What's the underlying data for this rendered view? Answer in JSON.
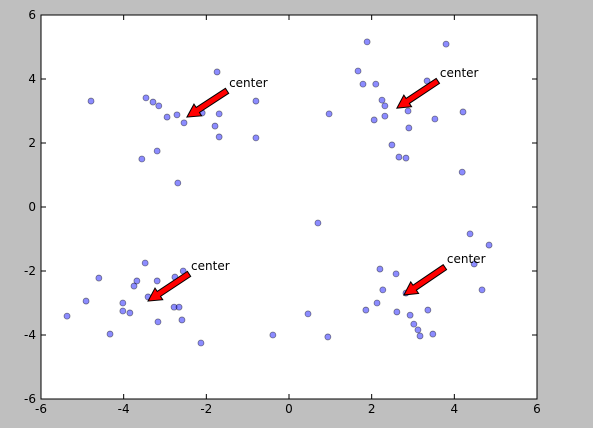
{
  "chart_data": {
    "type": "scatter",
    "x": [
      -4.79,
      -3.46,
      -3.29,
      -3.15,
      -2.95,
      -2.71,
      -2.54,
      -2.1,
      -1.74,
      -1.69,
      -1.79,
      -1.69,
      -0.8,
      -0.8,
      -3.56,
      -3.19,
      -2.69,
      1.89,
      3.8,
      1.67,
      1.79,
      2.1,
      2.25,
      2.32,
      2.32,
      2.06,
      2.88,
      2.9,
      2.49,
      2.66,
      2.83,
      3.34,
      4.21,
      3.53,
      4.19,
      0.7,
      0.97,
      -3.48,
      -4.6,
      -3.68,
      -3.75,
      -3.85,
      -4.02,
      -4.02,
      -4.91,
      -5.37,
      -4.33,
      -3.41,
      -3.19,
      -3.17,
      -2.76,
      -2.56,
      -2.78,
      -2.66,
      -2.59,
      -2.13,
      -0.39,
      0.46,
      0.94,
      2.2,
      2.59,
      2.27,
      2.13,
      1.86,
      2.61,
      2.83,
      2.93,
      3.02,
      3.12,
      3.17,
      3.36,
      3.48,
      4.38,
      4.48,
      4.84,
      4.67
    ],
    "values": [
      3.31,
      3.41,
      3.28,
      3.16,
      2.81,
      2.88,
      2.63,
      2.94,
      4.22,
      2.91,
      2.53,
      2.19,
      3.31,
      2.16,
      1.5,
      1.75,
      0.75,
      5.16,
      5.09,
      4.25,
      3.84,
      3.84,
      3.34,
      3.16,
      2.84,
      2.72,
      3.0,
      2.47,
      1.94,
      1.56,
      1.53,
      3.94,
      2.97,
      2.75,
      1.09,
      -0.5,
      2.91,
      -1.75,
      -2.22,
      -2.31,
      -2.47,
      -3.31,
      -3.0,
      -3.25,
      -2.94,
      -3.41,
      -3.97,
      -2.81,
      -2.31,
      -3.59,
      -2.19,
      -2.0,
      -3.13,
      -3.13,
      -3.53,
      -4.25,
      -4.0,
      -3.34,
      -4.06,
      -1.94,
      -2.09,
      -2.59,
      -3.0,
      -3.22,
      -3.28,
      -2.69,
      -3.38,
      -3.66,
      -3.84,
      -4.03,
      -3.22,
      -3.97,
      -0.84,
      -1.78,
      -1.19,
      -2.59
    ],
    "color": "#0000ff",
    "xlim": [
      -6,
      6
    ],
    "ylim": [
      -6,
      6
    ],
    "xticks": [
      -6,
      -4,
      -2,
      0,
      2,
      4,
      6
    ],
    "yticks": [
      -6,
      -4,
      -2,
      0,
      2,
      4,
      6
    ],
    "annotations": [
      {
        "text": "center",
        "xy": [
          -2.47,
          2.81
        ],
        "xytext": [
          -1.45,
          3.88
        ]
      },
      {
        "text": "center",
        "xy": [
          2.61,
          3.09
        ],
        "xytext": [
          3.65,
          4.19
        ]
      },
      {
        "text": "center",
        "xy": [
          -3.41,
          -2.94
        ],
        "xytext": [
          -2.37,
          -1.84
        ]
      },
      {
        "text": "center",
        "xy": [
          2.78,
          -2.75
        ],
        "xytext": [
          3.82,
          -1.63
        ]
      }
    ],
    "arrow_color": "#ff0000"
  }
}
